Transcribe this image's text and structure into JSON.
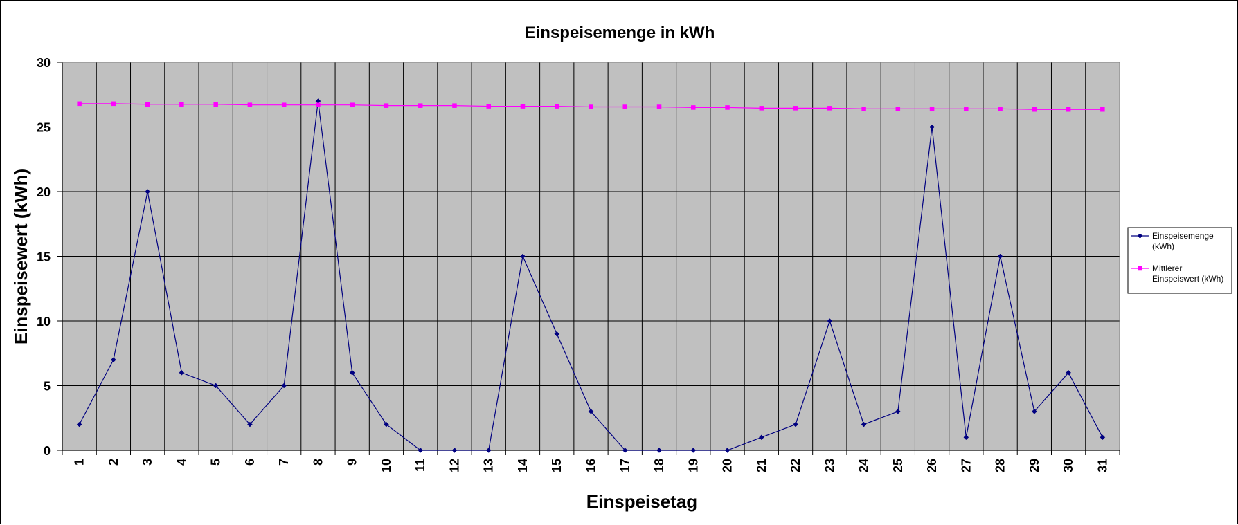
{
  "chart_data": {
    "type": "line",
    "title": "Einspeisemenge in kWh",
    "xlabel": "Einspeisetag",
    "ylabel": "Einspeisewert  (kWh)",
    "ylim": [
      0,
      30
    ],
    "yticks": [
      0,
      5,
      10,
      15,
      20,
      25,
      30
    ],
    "grid": true,
    "legend_position": "right",
    "plot_background": "#c0c0c0",
    "categories": [
      "1",
      "2",
      "3",
      "4",
      "5",
      "6",
      "7",
      "8",
      "9",
      "10",
      "11",
      "12",
      "13",
      "14",
      "15",
      "16",
      "17",
      "18",
      "19",
      "20",
      "21",
      "22",
      "23",
      "24",
      "25",
      "26",
      "27",
      "28",
      "29",
      "30",
      "31"
    ],
    "series": [
      {
        "name": "Einspeisemenge (kWh)",
        "legend_lines": [
          "Einspeisemenge",
          "(kWh)"
        ],
        "color": "#000080",
        "marker": "diamond",
        "values": [
          2,
          7,
          20,
          6,
          5,
          2,
          5,
          27,
          6,
          2,
          0,
          0,
          0,
          15,
          9,
          3,
          0,
          0,
          0,
          0,
          1,
          2,
          10,
          2,
          3,
          25,
          1,
          15,
          3,
          6,
          1
        ]
      },
      {
        "name": "Mittlerer Einspeiswert (kWh)",
        "legend_lines": [
          "Mittlerer",
          "Einspeiswert (kWh)"
        ],
        "color": "#ff00ff",
        "marker": "square",
        "values": [
          26.8,
          26.8,
          26.75,
          26.75,
          26.75,
          26.7,
          26.7,
          26.7,
          26.7,
          26.65,
          26.65,
          26.65,
          26.6,
          26.6,
          26.6,
          26.55,
          26.55,
          26.55,
          26.5,
          26.5,
          26.45,
          26.45,
          26.45,
          26.4,
          26.4,
          26.4,
          26.4,
          26.4,
          26.35,
          26.35,
          26.35
        ]
      }
    ]
  }
}
